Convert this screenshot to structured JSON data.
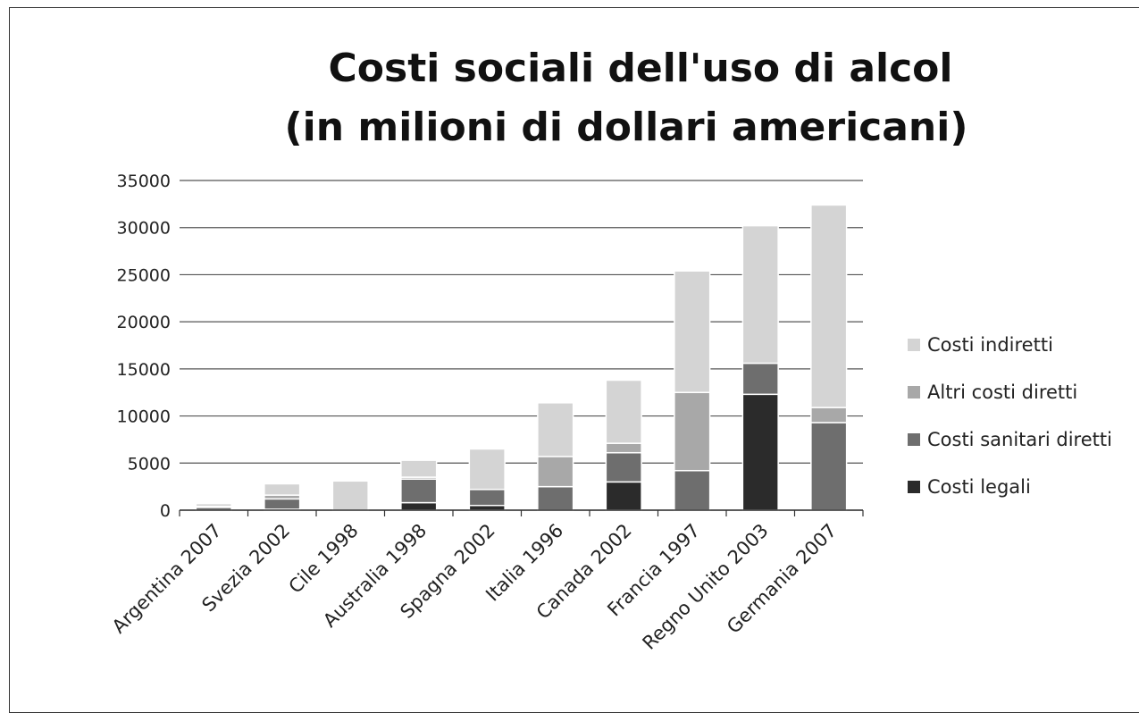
{
  "chart_data": {
    "type": "bar",
    "stacked": true,
    "title_line1": "Costi sociali dell'uso di alcol",
    "title_line2": "(in milioni di dollari americani)",
    "xlabel": "",
    "ylabel": "",
    "ylim": [
      0,
      35000
    ],
    "yticks": [
      0,
      5000,
      10000,
      15000,
      20000,
      25000,
      30000,
      35000
    ],
    "ytick_labels": [
      "0",
      "5000",
      "10000",
      "15000",
      "20000",
      "25000",
      "30000",
      "35000"
    ],
    "grid": true,
    "legend_position": "right",
    "categories": [
      "Argentina 2007",
      "Svezia 2002",
      "Cile 1998",
      "Australia 1998",
      "Spagna 2002",
      "Italia 1996",
      "Canada 2002",
      "Francia 1997",
      "Regno Unito 2003",
      "Germania 2007"
    ],
    "series": [
      {
        "name": "Costi legali",
        "color": "#2b2b2b",
        "values": [
          0,
          100,
          0,
          800,
          500,
          0,
          3000,
          0,
          12300,
          0
        ]
      },
      {
        "name": "Costi sanitari diretti",
        "color": "#6e6e6e",
        "values": [
          300,
          1100,
          0,
          2500,
          1700,
          2500,
          3100,
          4200,
          3300,
          9300
        ]
      },
      {
        "name": "Altri costi diretti",
        "color": "#a8a8a8",
        "values": [
          100,
          400,
          0,
          200,
          0,
          3200,
          1000,
          8300,
          0,
          1600
        ]
      },
      {
        "name": "Costi indiretti",
        "color": "#d4d4d4",
        "values": [
          300,
          1200,
          3100,
          1800,
          4300,
          5700,
          6700,
          12900,
          14600,
          21500
        ]
      }
    ]
  }
}
